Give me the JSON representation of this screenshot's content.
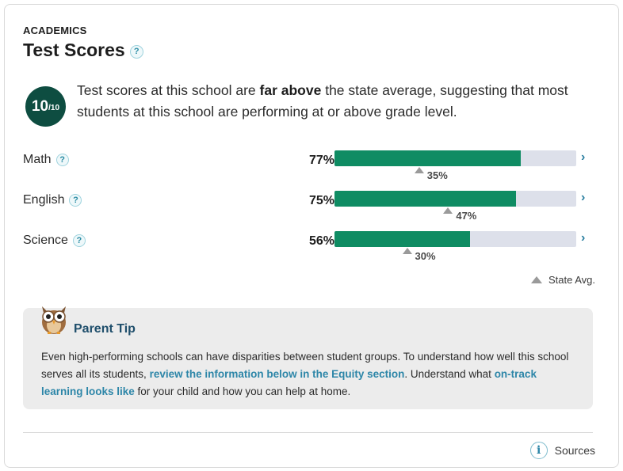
{
  "section_label": "ACADEMICS",
  "title": "Test Scores",
  "help_glyph": "?",
  "rating": {
    "score": "10",
    "out_of": "/10"
  },
  "summary": {
    "before": "Test scores at this school are ",
    "emphasis": "far above",
    "after": " the state average, suggesting that most students at this school are performing at or above grade level."
  },
  "subjects": [
    {
      "label": "Math",
      "pct_label": "77%",
      "value": 77,
      "state_avg": 35,
      "state_avg_label": "35%"
    },
    {
      "label": "English",
      "pct_label": "75%",
      "value": 75,
      "state_avg": 47,
      "state_avg_label": "47%"
    },
    {
      "label": "Science",
      "pct_label": "56%",
      "value": 56,
      "state_avg": 30,
      "state_avg_label": "30%"
    }
  ],
  "chevron": "›",
  "legend_label": "State Avg.",
  "parent_tip": {
    "title": "Parent Tip",
    "text_1": "Even high-performing schools can have disparities between student groups. To understand how well this school serves all its students, ",
    "link_1": "review the information below in the Equity section",
    "text_2": ". Understand what ",
    "link_2": "on-track learning looks like",
    "text_3": " for your child and how you can help at home."
  },
  "sources_icon": "i",
  "sources_label": "Sources",
  "colors": {
    "rating_bg": "#0e4d41",
    "bar_fill": "#0f8c63",
    "bar_track": "#dde0ea",
    "link": "#2d86a8"
  }
}
